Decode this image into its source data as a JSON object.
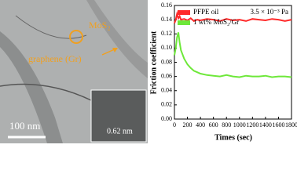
{
  "image_labels": {
    "particle": "MoS₂",
    "sheet": "graphene (Gr)",
    "scale_bar": "100 nm",
    "spacing": "0.62 nm"
  },
  "chart_data": {
    "type": "line",
    "annotation": "3.5 × 10⁻³ Pa",
    "x_label": "Times (sec)",
    "y_label": "Friction coefficient",
    "x": [
      0,
      20,
      40,
      60,
      80,
      100,
      150,
      200,
      250,
      300,
      350,
      400,
      500,
      600,
      700,
      800,
      900,
      1000,
      1100,
      1200,
      1300,
      1400,
      1500,
      1600,
      1700,
      1800
    ],
    "series": [
      {
        "name": "PFPE oil",
        "color": "#ff2a2a",
        "values": [
          0.135,
          0.14,
          0.148,
          0.142,
          0.145,
          0.14,
          0.141,
          0.139,
          0.142,
          0.138,
          0.14,
          0.139,
          0.141,
          0.14,
          0.138,
          0.141,
          0.139,
          0.14,
          0.138,
          0.141,
          0.14,
          0.139,
          0.141,
          0.14,
          0.138,
          0.14
        ]
      },
      {
        "name": "1 wt% MoS₂/Gr",
        "color": "#6ee83a",
        "values": [
          0.09,
          0.1,
          0.115,
          0.122,
          0.108,
          0.097,
          0.085,
          0.077,
          0.072,
          0.068,
          0.066,
          0.064,
          0.062,
          0.061,
          0.06,
          0.062,
          0.06,
          0.059,
          0.061,
          0.06,
          0.06,
          0.061,
          0.059,
          0.06,
          0.06,
          0.059
        ]
      }
    ],
    "xlim": [
      0,
      1800
    ],
    "xticks": [
      0,
      200,
      400,
      600,
      800,
      1000,
      1200,
      1400,
      1600,
      1800
    ],
    "ylim": [
      0,
      0.16
    ],
    "yticks": [
      {
        "value": 0,
        "label": "0.00"
      },
      {
        "value": 0.02,
        "label": "0.02"
      },
      {
        "value": 0.04,
        "label": "0.04"
      },
      {
        "value": 0.06,
        "label": "0.06"
      },
      {
        "value": 0.08,
        "label": "0.08"
      },
      {
        "value": 0.1,
        "label": "0.10"
      },
      {
        "value": 0.12,
        "label": "0.12"
      },
      {
        "value": 0.14,
        "label": "0.14"
      },
      {
        "value": 0.16,
        "label": "0.16"
      }
    ],
    "legend": "top-left"
  }
}
